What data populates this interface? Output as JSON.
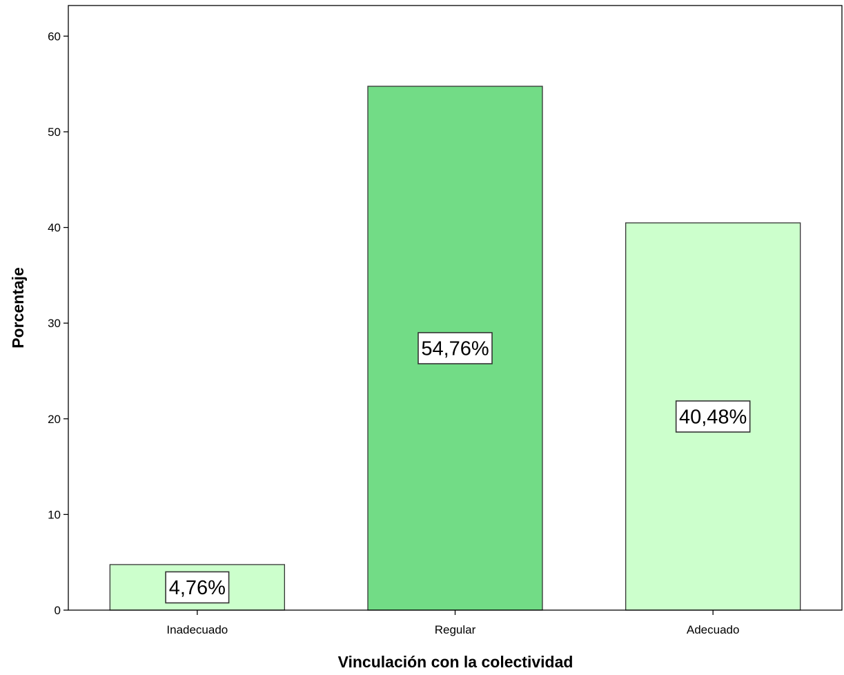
{
  "chart_data": {
    "type": "bar",
    "xlabel": "Vinculación con la colectividad",
    "ylabel": "Porcentaje",
    "categories": [
      "Inadecuado",
      "Regular",
      "Adecuado"
    ],
    "values": [
      4.76,
      54.76,
      40.48
    ],
    "data_labels": [
      "4,76%",
      "54,76%",
      "40,48%"
    ],
    "bar_colors": [
      "#ccffcc",
      "#72dc86",
      "#ccffcc"
    ],
    "ylim": [
      0,
      63.2
    ],
    "yticks": [
      0,
      10,
      20,
      30,
      40,
      50,
      60
    ],
    "ytick_labels": [
      "0",
      "10",
      "20",
      "30",
      "40",
      "50",
      "60"
    ],
    "grid": false,
    "legend": "none"
  }
}
